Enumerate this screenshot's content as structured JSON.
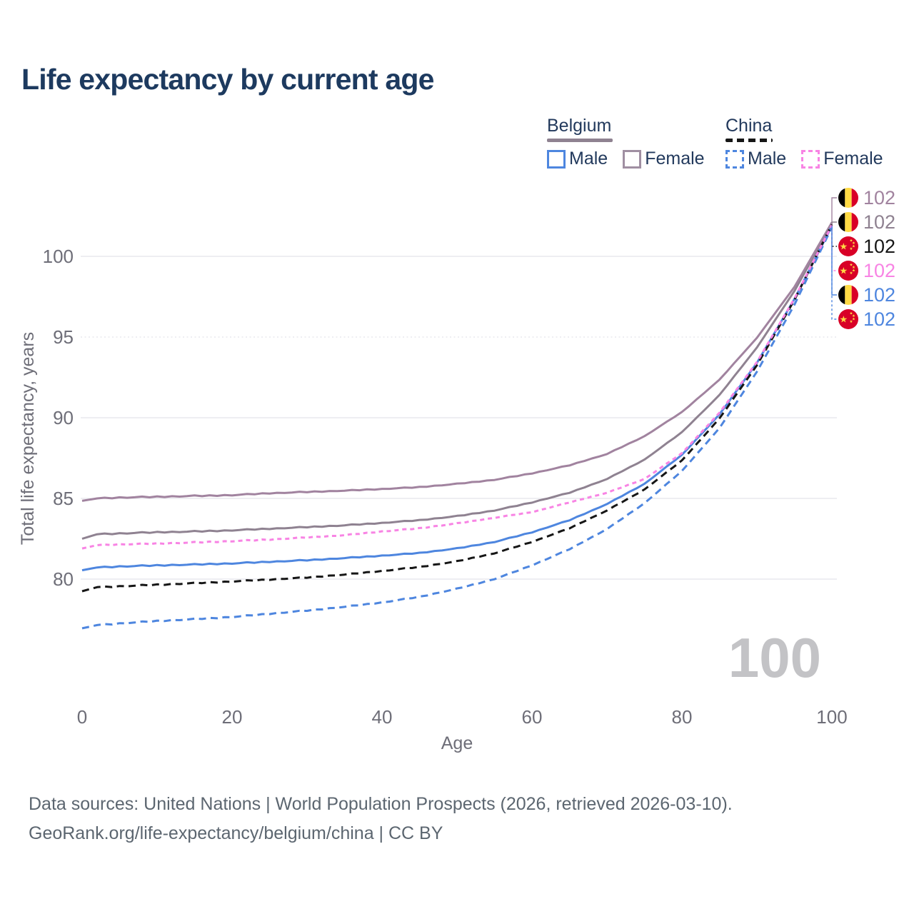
{
  "title": "Life expectancy by current age",
  "legend": {
    "groups": [
      {
        "country": "Belgium",
        "line_style": "solid",
        "underline_color": "#8f8291",
        "items": [
          {
            "label": "Male",
            "color": "#4e86df",
            "dashed": false
          },
          {
            "label": "Female",
            "color": "#a08fa2",
            "dashed": false
          }
        ]
      },
      {
        "country": "China",
        "line_style": "dashed",
        "underline_color": "#161616",
        "items": [
          {
            "label": "Male",
            "color": "#4e86df",
            "dashed": true
          },
          {
            "label": "Female",
            "color": "#f884e4",
            "dashed": true
          }
        ]
      }
    ]
  },
  "chart_data": {
    "type": "line",
    "title": "Life expectancy by current age",
    "xlabel": "Age",
    "ylabel": "Total life expectancy, years",
    "x_ticks": [
      0,
      20,
      40,
      60,
      80,
      100
    ],
    "y_ticks": [
      80,
      85,
      90,
      95,
      100
    ],
    "xlim": [
      0,
      100
    ],
    "ylim": [
      75,
      103
    ],
    "grid": true,
    "legend_position": "top-right",
    "age_watermark": "100",
    "axis_color": "#6e6e78",
    "grid_color": "#e9e9ee",
    "watermark_color": "#c3c3c6",
    "series": [
      {
        "name": "Belgium Female",
        "country": "Belgium",
        "sex": "Female",
        "flag": "belgium",
        "color": "#a1839f",
        "dashed": false,
        "end_label": "102",
        "points": [
          [
            0,
            84.85
          ],
          [
            2,
            85.0
          ],
          [
            5,
            85.05
          ],
          [
            10,
            85.1
          ],
          [
            15,
            85.15
          ],
          [
            20,
            85.2
          ],
          [
            25,
            85.32
          ],
          [
            30,
            85.4
          ],
          [
            35,
            85.48
          ],
          [
            40,
            85.58
          ],
          [
            45,
            85.7
          ],
          [
            50,
            85.9
          ],
          [
            55,
            86.15
          ],
          [
            60,
            86.55
          ],
          [
            65,
            87.05
          ],
          [
            70,
            87.75
          ],
          [
            75,
            88.85
          ],
          [
            80,
            90.35
          ],
          [
            85,
            92.35
          ],
          [
            90,
            94.95
          ],
          [
            95,
            98.1
          ],
          [
            100,
            102.1
          ]
        ]
      },
      {
        "name": "Belgium",
        "country": "Belgium",
        "sex": "Both",
        "flag": "belgium",
        "color": "#8f8291",
        "dashed": false,
        "end_label": "102",
        "points": [
          [
            0,
            82.5
          ],
          [
            2,
            82.78
          ],
          [
            5,
            82.83
          ],
          [
            10,
            82.9
          ],
          [
            15,
            82.95
          ],
          [
            20,
            83.02
          ],
          [
            25,
            83.12
          ],
          [
            30,
            83.22
          ],
          [
            35,
            83.33
          ],
          [
            40,
            83.48
          ],
          [
            45,
            83.65
          ],
          [
            50,
            83.9
          ],
          [
            55,
            84.25
          ],
          [
            60,
            84.75
          ],
          [
            65,
            85.35
          ],
          [
            70,
            86.2
          ],
          [
            75,
            87.4
          ],
          [
            80,
            89.1
          ],
          [
            85,
            91.4
          ],
          [
            90,
            94.35
          ],
          [
            95,
            97.85
          ],
          [
            100,
            102.02
          ]
        ]
      },
      {
        "name": "China",
        "country": "China",
        "sex": "Both",
        "flag": "china",
        "color": "#161616",
        "dashed": true,
        "end_label": "102",
        "points": [
          [
            0,
            79.25
          ],
          [
            2,
            79.5
          ],
          [
            5,
            79.55
          ],
          [
            10,
            79.65
          ],
          [
            15,
            79.75
          ],
          [
            20,
            79.85
          ],
          [
            25,
            79.97
          ],
          [
            30,
            80.1
          ],
          [
            35,
            80.28
          ],
          [
            40,
            80.5
          ],
          [
            45,
            80.75
          ],
          [
            50,
            81.1
          ],
          [
            55,
            81.6
          ],
          [
            60,
            82.3
          ],
          [
            65,
            83.15
          ],
          [
            70,
            84.25
          ],
          [
            75,
            85.55
          ],
          [
            80,
            87.35
          ],
          [
            85,
            89.95
          ],
          [
            90,
            93.25
          ],
          [
            95,
            97.3
          ],
          [
            100,
            101.97
          ]
        ]
      },
      {
        "name": "China Female",
        "country": "China",
        "sex": "Female",
        "flag": "china",
        "color": "#f884e4",
        "dashed": true,
        "end_label": "102",
        "points": [
          [
            0,
            81.9
          ],
          [
            2,
            82.1
          ],
          [
            5,
            82.15
          ],
          [
            10,
            82.2
          ],
          [
            15,
            82.27
          ],
          [
            20,
            82.35
          ],
          [
            25,
            82.45
          ],
          [
            30,
            82.58
          ],
          [
            35,
            82.72
          ],
          [
            40,
            82.95
          ],
          [
            45,
            83.15
          ],
          [
            50,
            83.45
          ],
          [
            55,
            83.8
          ],
          [
            60,
            84.15
          ],
          [
            65,
            84.75
          ],
          [
            70,
            85.35
          ],
          [
            75,
            86.2
          ],
          [
            80,
            87.8
          ],
          [
            85,
            90.3
          ],
          [
            90,
            93.45
          ],
          [
            95,
            97.38
          ],
          [
            100,
            101.93
          ]
        ]
      },
      {
        "name": "Belgium Male",
        "country": "Belgium",
        "sex": "Male",
        "flag": "belgium",
        "color": "#4e86df",
        "dashed": false,
        "end_label": "102",
        "points": [
          [
            0,
            80.55
          ],
          [
            2,
            80.72
          ],
          [
            5,
            80.78
          ],
          [
            10,
            80.85
          ],
          [
            15,
            80.9
          ],
          [
            20,
            80.97
          ],
          [
            25,
            81.07
          ],
          [
            30,
            81.17
          ],
          [
            35,
            81.3
          ],
          [
            40,
            81.45
          ],
          [
            45,
            81.62
          ],
          [
            50,
            81.9
          ],
          [
            55,
            82.3
          ],
          [
            60,
            82.9
          ],
          [
            65,
            83.65
          ],
          [
            70,
            84.65
          ],
          [
            75,
            85.9
          ],
          [
            80,
            87.7
          ],
          [
            85,
            90.2
          ],
          [
            90,
            93.4
          ],
          [
            95,
            97.35
          ],
          [
            100,
            101.88
          ]
        ]
      },
      {
        "name": "China Male",
        "country": "China",
        "sex": "Male",
        "flag": "china",
        "color": "#4e86df",
        "dashed": true,
        "end_label": "102",
        "points": [
          [
            0,
            76.95
          ],
          [
            2,
            77.15
          ],
          [
            5,
            77.25
          ],
          [
            10,
            77.4
          ],
          [
            15,
            77.52
          ],
          [
            20,
            77.65
          ],
          [
            25,
            77.85
          ],
          [
            30,
            78.05
          ],
          [
            35,
            78.28
          ],
          [
            40,
            78.55
          ],
          [
            45,
            78.9
          ],
          [
            50,
            79.4
          ],
          [
            55,
            80.0
          ],
          [
            60,
            80.85
          ],
          [
            65,
            81.85
          ],
          [
            70,
            83.1
          ],
          [
            75,
            84.7
          ],
          [
            80,
            86.7
          ],
          [
            85,
            89.35
          ],
          [
            90,
            92.85
          ],
          [
            95,
            97.0
          ],
          [
            100,
            101.8
          ]
        ]
      }
    ],
    "flag_colors": {
      "belgium": [
        "#000000",
        "#ffda44",
        "#d80027"
      ],
      "china_bg": "#d80027",
      "china_star": "#ffda44"
    }
  },
  "footer": {
    "line1": "Data sources: United Nations | World Population Prospects (2026, retrieved 2026-03-10).",
    "line2": "GeoRank.org/life-expectancy/belgium/china | CC BY"
  }
}
